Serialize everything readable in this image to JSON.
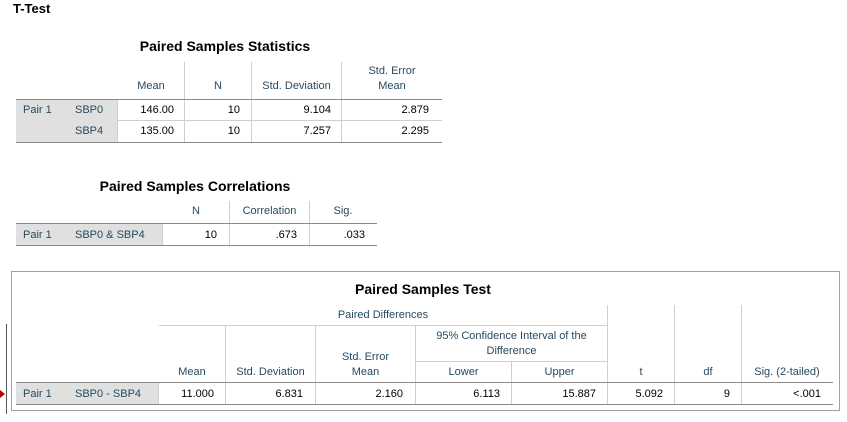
{
  "section_title": "T-Test",
  "stats_table": {
    "title": "Paired Samples Statistics",
    "headers": [
      "Mean",
      "N",
      "Std. Deviation",
      "Std. Error",
      "Mean"
    ],
    "pair_label": "Pair 1",
    "rows": [
      {
        "var": "SBP0",
        "mean": "146.00",
        "n": "10",
        "sd": "9.104",
        "se": "2.879"
      },
      {
        "var": "SBP4",
        "mean": "135.00",
        "n": "10",
        "sd": "7.257",
        "se": "2.295"
      }
    ]
  },
  "corr_table": {
    "title": "Paired Samples Correlations",
    "headers": [
      "N",
      "Correlation",
      "Sig."
    ],
    "pair_label": "Pair 1",
    "var": "SBP0 & SBP4",
    "n": "10",
    "corr": ".673",
    "sig": ".033"
  },
  "test_table": {
    "title": "Paired Samples Test",
    "group_header": "Paired Differences",
    "ci_header_1": "95% Confidence Interval of the",
    "ci_header_2": "Difference",
    "headers": {
      "mean": "Mean",
      "sd": "Std. Deviation",
      "se_1": "Std. Error",
      "se_2": "Mean",
      "lower": "Lower",
      "upper": "Upper",
      "t": "t",
      "df": "df",
      "sig": "Sig. (2-tailed)"
    },
    "pair_label": "Pair 1",
    "var": "SBP0 - SBP4",
    "mean": "11.000",
    "sd": "6.831",
    "se": "2.160",
    "lower": "6.113",
    "upper": "15.887",
    "t": "5.092",
    "df": "9",
    "sig": "<.001"
  },
  "colors": {
    "header_text": "#264a60",
    "row_label_bg": "#e0e0e0",
    "marker": "#c00000"
  }
}
